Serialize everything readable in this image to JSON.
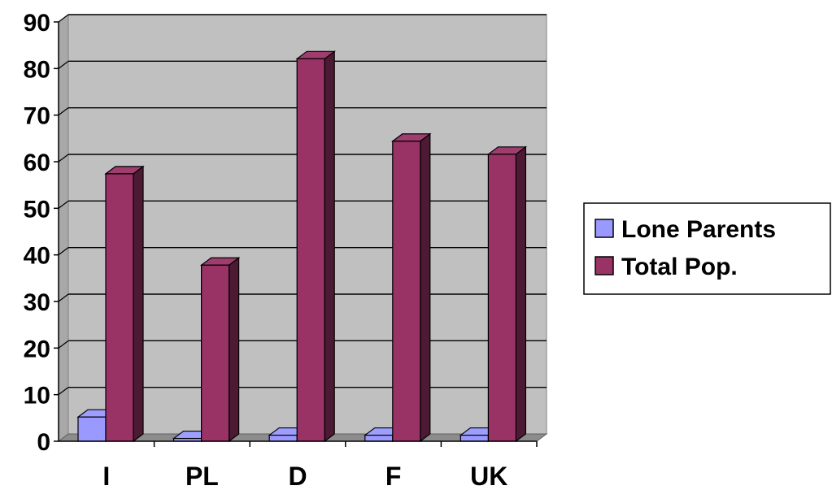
{
  "chart_data": {
    "type": "bar",
    "title": "",
    "xlabel": "",
    "ylabel": "",
    "categories": [
      "I",
      "PL",
      "D",
      "F",
      "UK"
    ],
    "series": [
      {
        "name": "Lone Parents",
        "values": [
          5.2,
          0.6,
          1.3,
          1.3,
          1.3
        ],
        "color": "#9999ff"
      },
      {
        "name": "Total Pop.",
        "values": [
          57.4,
          37.8,
          82.1,
          64.4,
          61.6
        ],
        "color": "#993366"
      }
    ],
    "ylim": [
      0,
      90
    ],
    "y_ticks": [
      "0",
      "10",
      "20",
      "30",
      "40",
      "50",
      "60",
      "70",
      "80",
      "90"
    ],
    "grid": true,
    "plot_background": "#c0c0c0",
    "legend_position": "right",
    "style": "3d-clustered-column"
  }
}
